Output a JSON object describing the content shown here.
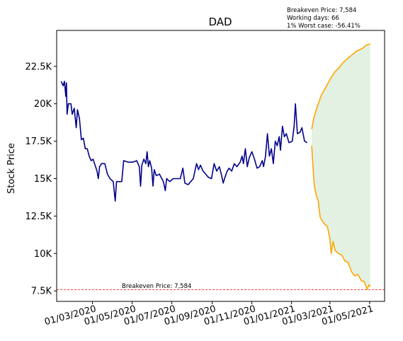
{
  "chart_data": {
    "type": "line",
    "title": "DAD",
    "ylabel": "Stock Price",
    "xlabel": "",
    "info_lines": [
      "Breakeven Price: 7,584",
      "Working days: 66",
      "1% Worst case: -56.41%"
    ],
    "breakeven": {
      "value": 7584,
      "label": "Breakeven Price: 7,584",
      "color": "#ff0000"
    },
    "x_range": [
      "2020-01-06",
      "2021-05-24"
    ],
    "y_range": [
      6800,
      24900
    ],
    "x_ticks": [
      {
        "date": "2020-03-01",
        "label": "01/03/2020"
      },
      {
        "date": "2020-05-01",
        "label": "01/05/2020"
      },
      {
        "date": "2020-07-01",
        "label": "01/07/2020"
      },
      {
        "date": "2020-09-01",
        "label": "01/09/2020"
      },
      {
        "date": "2020-11-01",
        "label": "01/11/2020"
      },
      {
        "date": "2021-01-01",
        "label": "01/01/2021"
      },
      {
        "date": "2021-03-01",
        "label": "01/03/2021"
      },
      {
        "date": "2021-05-01",
        "label": "01/05/2021"
      }
    ],
    "y_ticks": [
      {
        "value": 7500,
        "label": "7.5K"
      },
      {
        "value": 10000,
        "label": "10K"
      },
      {
        "value": 12500,
        "label": "12.5K"
      },
      {
        "value": 15000,
        "label": "15K"
      },
      {
        "value": 17500,
        "label": "17.5K"
      },
      {
        "value": 20000,
        "label": "20K"
      },
      {
        "value": 22500,
        "label": "22.5K"
      }
    ],
    "grid": false,
    "series": [
      {
        "color": "#00008b",
        "points": [
          [
            "2020-01-13",
            21500
          ],
          [
            "2020-01-16",
            21200
          ],
          [
            "2020-01-18",
            21500
          ],
          [
            "2020-01-20",
            20500
          ],
          [
            "2020-01-21",
            21400
          ],
          [
            "2020-01-22",
            19300
          ],
          [
            "2020-01-24",
            20000
          ],
          [
            "2020-01-28",
            20000
          ],
          [
            "2020-01-30",
            19300
          ],
          [
            "2020-02-02",
            19700
          ],
          [
            "2020-02-05",
            18400
          ],
          [
            "2020-02-07",
            19600
          ],
          [
            "2020-02-10",
            19000
          ],
          [
            "2020-02-13",
            17600
          ],
          [
            "2020-02-16",
            17700
          ],
          [
            "2020-02-19",
            17000
          ],
          [
            "2020-02-22",
            17000
          ],
          [
            "2020-02-25",
            16500
          ],
          [
            "2020-02-28",
            16200
          ],
          [
            "2020-03-02",
            16300
          ],
          [
            "2020-03-05",
            15900
          ],
          [
            "2020-03-08",
            15500
          ],
          [
            "2020-03-10",
            15000
          ],
          [
            "2020-03-12",
            15800
          ],
          [
            "2020-03-15",
            16000
          ],
          [
            "2020-03-20",
            16000
          ],
          [
            "2020-03-24",
            15300
          ],
          [
            "2020-03-28",
            15000
          ],
          [
            "2020-04-02",
            14800
          ],
          [
            "2020-04-05",
            13500
          ],
          [
            "2020-04-07",
            14800
          ],
          [
            "2020-04-15",
            14800
          ],
          [
            "2020-04-18",
            16200
          ],
          [
            "2020-04-25",
            16100
          ],
          [
            "2020-05-02",
            16100
          ],
          [
            "2020-05-08",
            16200
          ],
          [
            "2020-05-12",
            15800
          ],
          [
            "2020-05-14",
            14500
          ],
          [
            "2020-05-16",
            15900
          ],
          [
            "2020-05-19",
            16300
          ],
          [
            "2020-05-22",
            16000
          ],
          [
            "2020-05-24",
            16800
          ],
          [
            "2020-05-26",
            15800
          ],
          [
            "2020-05-28",
            16200
          ],
          [
            "2020-05-31",
            15700
          ],
          [
            "2020-06-02",
            14500
          ],
          [
            "2020-06-04",
            15600
          ],
          [
            "2020-06-07",
            15200
          ],
          [
            "2020-06-12",
            15300
          ],
          [
            "2020-06-18",
            14800
          ],
          [
            "2020-06-21",
            14200
          ],
          [
            "2020-06-23",
            15000
          ],
          [
            "2020-06-28",
            14800
          ],
          [
            "2020-07-03",
            15000
          ],
          [
            "2020-07-10",
            15000
          ],
          [
            "2020-07-14",
            15000
          ],
          [
            "2020-07-18",
            15700
          ],
          [
            "2020-07-21",
            14700
          ],
          [
            "2020-07-26",
            14600
          ],
          [
            "2020-08-03",
            15000
          ],
          [
            "2020-08-08",
            16000
          ],
          [
            "2020-08-11",
            15600
          ],
          [
            "2020-08-14",
            15900
          ],
          [
            "2020-08-18",
            15500
          ],
          [
            "2020-08-22",
            15300
          ],
          [
            "2020-08-26",
            15100
          ],
          [
            "2020-08-31",
            15000
          ],
          [
            "2020-09-04",
            16000
          ],
          [
            "2020-09-08",
            15500
          ],
          [
            "2020-09-12",
            15800
          ],
          [
            "2020-09-15",
            15300
          ],
          [
            "2020-09-18",
            14700
          ],
          [
            "2020-09-20",
            15000
          ],
          [
            "2020-09-24",
            15500
          ],
          [
            "2020-09-27",
            15700
          ],
          [
            "2020-10-01",
            15500
          ],
          [
            "2020-10-05",
            16000
          ],
          [
            "2020-10-09",
            15800
          ],
          [
            "2020-10-14",
            16100
          ],
          [
            "2020-10-17",
            16500
          ],
          [
            "2020-10-19",
            16000
          ],
          [
            "2020-10-22",
            17000
          ],
          [
            "2020-10-25",
            15800
          ],
          [
            "2020-10-28",
            16400
          ],
          [
            "2020-11-01",
            16800
          ],
          [
            "2020-11-05",
            16300
          ],
          [
            "2020-11-09",
            15700
          ],
          [
            "2020-11-13",
            15800
          ],
          [
            "2020-11-17",
            16200
          ],
          [
            "2020-11-19",
            15800
          ],
          [
            "2020-11-22",
            16500
          ],
          [
            "2020-11-25",
            18000
          ],
          [
            "2020-11-28",
            16500
          ],
          [
            "2020-12-01",
            17000
          ],
          [
            "2020-12-04",
            16000
          ],
          [
            "2020-12-07",
            17500
          ],
          [
            "2020-12-10",
            17200
          ],
          [
            "2020-12-13",
            17800
          ],
          [
            "2020-12-15",
            16900
          ],
          [
            "2020-12-18",
            18500
          ],
          [
            "2020-12-21",
            17800
          ],
          [
            "2020-12-24",
            18000
          ],
          [
            "2020-12-28",
            17400
          ],
          [
            "2021-01-02",
            17500
          ],
          [
            "2021-01-05",
            18500
          ],
          [
            "2021-01-07",
            20000
          ],
          [
            "2021-01-10",
            18000
          ],
          [
            "2021-01-14",
            18100
          ],
          [
            "2021-01-17",
            18400
          ],
          [
            "2021-01-21",
            17500
          ],
          [
            "2021-01-25",
            17400
          ]
        ]
      },
      {
        "color": "#ffa500",
        "points": [
          [
            "2021-02-01",
            18300
          ],
          [
            "2021-02-04",
            19000
          ],
          [
            "2021-02-08",
            19600
          ],
          [
            "2021-02-12",
            20100
          ],
          [
            "2021-02-16",
            20600
          ],
          [
            "2021-02-20",
            20900
          ],
          [
            "2021-02-25",
            21300
          ],
          [
            "2021-03-01",
            21600
          ],
          [
            "2021-03-05",
            21900
          ],
          [
            "2021-03-10",
            22200
          ],
          [
            "2021-03-15",
            22400
          ],
          [
            "2021-03-20",
            22700
          ],
          [
            "2021-03-25",
            22900
          ],
          [
            "2021-03-30",
            23100
          ],
          [
            "2021-04-05",
            23300
          ],
          [
            "2021-04-10",
            23500
          ],
          [
            "2021-04-15",
            23600
          ],
          [
            "2021-04-20",
            23700
          ],
          [
            "2021-04-25",
            23900
          ],
          [
            "2021-05-02",
            24000
          ]
        ]
      },
      {
        "color": "#ffa500",
        "points": [
          [
            "2021-02-01",
            17200
          ],
          [
            "2021-02-03",
            15800
          ],
          [
            "2021-02-05",
            14500
          ],
          [
            "2021-02-08",
            13900
          ],
          [
            "2021-02-11",
            13500
          ],
          [
            "2021-02-14",
            12400
          ],
          [
            "2021-02-17",
            12200
          ],
          [
            "2021-02-20",
            12000
          ],
          [
            "2021-02-25",
            11800
          ],
          [
            "2021-03-01",
            11000
          ],
          [
            "2021-03-03",
            10000
          ],
          [
            "2021-03-06",
            10800
          ],
          [
            "2021-03-09",
            10200
          ],
          [
            "2021-03-14",
            10000
          ],
          [
            "2021-03-19",
            9900
          ],
          [
            "2021-03-24",
            9500
          ],
          [
            "2021-03-29",
            9400
          ],
          [
            "2021-04-03",
            8800
          ],
          [
            "2021-04-08",
            8500
          ],
          [
            "2021-04-13",
            8600
          ],
          [
            "2021-04-18",
            8200
          ],
          [
            "2021-04-23",
            8100
          ],
          [
            "2021-04-27",
            7600
          ],
          [
            "2021-04-30",
            7900
          ],
          [
            "2021-05-02",
            7800
          ]
        ]
      }
    ],
    "band_color": "#e3f1e2"
  }
}
